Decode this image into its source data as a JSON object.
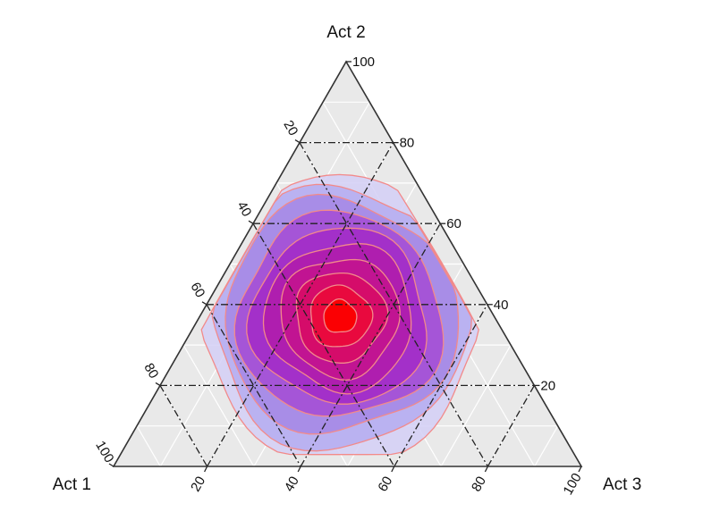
{
  "chart_data": {
    "type": "ternary-contour",
    "title": "",
    "axes": [
      {
        "name": "Act 1",
        "ticks": [
          "20",
          "40",
          "60",
          "80",
          "100"
        ]
      },
      {
        "name": "Act 2",
        "ticks": [
          "20",
          "40",
          "60",
          "80",
          "100"
        ]
      },
      {
        "name": "Act 3",
        "ticks": [
          "20",
          "40",
          "60",
          "80",
          "100"
        ]
      }
    ],
    "range": [
      0,
      100
    ],
    "grid": "dash-dot at 20, 40, 60, 80; fine white grid every 10",
    "peak": {
      "act1": 33,
      "act2": 37,
      "act3": 30
    },
    "contour_levels": [
      {
        "level": 1,
        "color": "#d4cff6"
      },
      {
        "level": 2,
        "color": "#b8b0f0"
      },
      {
        "level": 3,
        "color": "#a78be6"
      },
      {
        "level": 4,
        "color": "#a452d6"
      },
      {
        "level": 5,
        "color": "#a22ec8"
      },
      {
        "level": 6,
        "color": "#b01eae"
      },
      {
        "level": 7,
        "color": "#c21490"
      },
      {
        "level": 8,
        "color": "#d60c68"
      },
      {
        "level": 9,
        "color": "#ea0a3c"
      },
      {
        "level": 10,
        "color": "#fc0000"
      }
    ],
    "contour_line_color": "#f28a8a",
    "background_color": "#e9e9e9"
  }
}
